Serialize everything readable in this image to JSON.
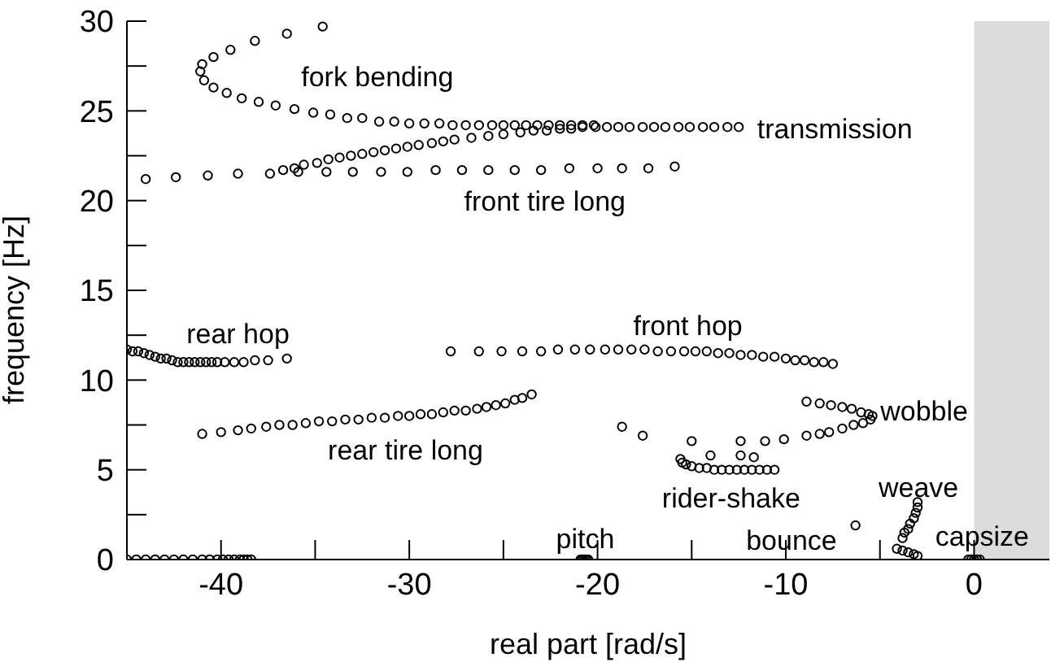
{
  "chart_data": {
    "type": "scatter",
    "xlabel": "real part [rad/s]",
    "ylabel": "frequency [Hz]",
    "xlim": [
      -45,
      4
    ],
    "ylim": [
      0,
      30
    ],
    "xticks": [
      -40,
      {
        "value": -35,
        "label": null
      },
      -30,
      {
        "value": -25,
        "label": null
      },
      -20,
      {
        "value": -15,
        "label": null
      },
      -10,
      {
        "value": -5,
        "label": null
      },
      0
    ],
    "yticks": [
      0,
      {
        "value": 2.5,
        "label": null
      },
      5,
      {
        "value": 7.5,
        "label": null
      },
      10,
      {
        "value": 12.5,
        "label": null
      },
      15,
      {
        "value": 17.5,
        "label": null
      },
      20,
      {
        "value": 22.5,
        "label": null
      },
      25,
      {
        "value": 27.5,
        "label": null
      },
      30
    ],
    "marker": "circle",
    "grid": false,
    "legend": false,
    "bands": [
      {
        "axis": "x",
        "from": 0,
        "to": 4,
        "color": "#dcdcdc"
      }
    ],
    "series": [
      {
        "color": "#000000",
        "x": [
          -34.6,
          -36.5,
          -38.2,
          -39.5,
          -40.4,
          -41.0,
          -41.1,
          -40.9,
          -40.4,
          -39.7,
          -38.9,
          -38.0,
          -37.1,
          -36.1,
          -35.1,
          -34.2,
          -33.3,
          -32.5,
          -31.6,
          -30.8,
          -30.0,
          -29.2,
          -28.4,
          -27.7,
          -27.0,
          -26.3,
          -25.6,
          -25.0,
          -24.4,
          -23.8,
          -23.2,
          -22.6,
          -22.0,
          -21.4,
          -20.8,
          -20.2
        ],
        "values": [
          29.7,
          29.3,
          28.9,
          28.4,
          28.0,
          27.6,
          27.2,
          26.7,
          26.3,
          26.0,
          25.7,
          25.5,
          25.3,
          25.1,
          24.9,
          24.8,
          24.6,
          24.6,
          24.4,
          24.4,
          24.3,
          24.3,
          24.3,
          24.2,
          24.2,
          24.2,
          24.2,
          24.2,
          24.2,
          24.2,
          24.2,
          24.2,
          24.2,
          24.2,
          24.2,
          24.2
        ]
      },
      {
        "color": "#000000",
        "x": [
          -44.0,
          -42.4,
          -40.7,
          -39.1,
          -37.4,
          -36.7,
          -36.1,
          -35.6,
          -34.9,
          -34.3,
          -33.7,
          -33.1,
          -32.5,
          -31.9,
          -31.3,
          -30.7,
          -30.1,
          -29.5,
          -28.8,
          -28.2,
          -27.6,
          -26.7,
          -25.8,
          -25.0,
          -24.1,
          -23.4,
          -22.7,
          -22.0,
          -21.4,
          -20.8,
          -20.1,
          -19.5,
          -18.9,
          -18.3,
          -17.6,
          -17.0,
          -16.4,
          -15.7,
          -15.1,
          -14.4,
          -13.8,
          -13.1,
          -12.5
        ],
        "values": [
          21.2,
          21.3,
          21.4,
          21.5,
          21.5,
          21.7,
          21.8,
          22.0,
          22.1,
          22.3,
          22.4,
          22.5,
          22.6,
          22.7,
          22.8,
          22.9,
          23.0,
          23.1,
          23.2,
          23.3,
          23.4,
          23.5,
          23.6,
          23.7,
          23.8,
          23.9,
          23.9,
          24.0,
          24.0,
          24.1,
          24.1,
          24.1,
          24.1,
          24.1,
          24.1,
          24.1,
          24.1,
          24.1,
          24.1,
          24.1,
          24.1,
          24.1,
          24.1
        ]
      },
      {
        "color": "#000000",
        "x": [
          -35.9,
          -34.4,
          -33.0,
          -31.5,
          -30.1,
          -28.6,
          -27.2,
          -25.8,
          -24.4,
          -23.0,
          -21.5,
          -20.0,
          -18.7,
          -17.3,
          -15.9
        ],
        "values": [
          21.6,
          21.6,
          21.6,
          21.6,
          21.6,
          21.7,
          21.7,
          21.7,
          21.7,
          21.7,
          21.8,
          21.8,
          21.8,
          21.8,
          21.9
        ]
      },
      {
        "color": "#000000",
        "x": [
          -45.0,
          -44.7,
          -44.4,
          -44.1,
          -43.8,
          -43.5,
          -43.2,
          -42.9,
          -42.6,
          -42.3,
          -42.0,
          -41.7,
          -41.4,
          -41.1,
          -40.8,
          -40.5,
          -40.2,
          -39.8,
          -39.3,
          -38.8,
          -38.2,
          -37.5,
          -36.5
        ],
        "values": [
          11.7,
          11.6,
          11.6,
          11.5,
          11.4,
          11.3,
          11.2,
          11.2,
          11.1,
          11.0,
          11.0,
          11.0,
          11.0,
          11.0,
          11.0,
          11.0,
          11.0,
          11.0,
          11.0,
          11.0,
          11.1,
          11.1,
          11.2
        ]
      },
      {
        "color": "#000000",
        "x": [
          -41.0,
          -40.0,
          -39.1,
          -38.4,
          -37.6,
          -36.9,
          -36.2,
          -35.5,
          -34.8,
          -34.1,
          -33.4,
          -32.7,
          -32.0,
          -31.3,
          -30.6,
          -30.0,
          -29.4,
          -28.8,
          -28.2,
          -27.6,
          -27.0,
          -26.4,
          -25.9,
          -25.4,
          -24.9,
          -24.4,
          -24.0,
          -23.5
        ],
        "values": [
          7.0,
          7.1,
          7.2,
          7.3,
          7.4,
          7.5,
          7.5,
          7.6,
          7.7,
          7.7,
          7.8,
          7.8,
          7.9,
          7.9,
          8.0,
          8.0,
          8.1,
          8.1,
          8.2,
          8.3,
          8.3,
          8.4,
          8.5,
          8.6,
          8.7,
          8.9,
          9.0,
          9.2
        ]
      },
      {
        "color": "#000000",
        "x": [
          -27.8,
          -26.3,
          -25.1,
          -24.0,
          -23.0,
          -22.1,
          -21.2,
          -20.4,
          -19.6,
          -18.9,
          -18.2,
          -17.5,
          -16.8,
          -16.1,
          -15.4,
          -14.8,
          -14.2,
          -13.6,
          -13.0,
          -12.4,
          -11.8,
          -11.2,
          -10.6,
          -10.0,
          -9.5,
          -9.0,
          -8.5,
          -8.0,
          -7.5
        ],
        "values": [
          11.6,
          11.6,
          11.6,
          11.6,
          11.6,
          11.7,
          11.7,
          11.7,
          11.7,
          11.7,
          11.7,
          11.7,
          11.6,
          11.6,
          11.6,
          11.6,
          11.6,
          11.5,
          11.5,
          11.4,
          11.4,
          11.3,
          11.3,
          11.2,
          11.1,
          11.1,
          11.0,
          11.0,
          10.9
        ]
      },
      {
        "color": "#000000",
        "x": [
          -8.9,
          -8.2,
          -7.6,
          -7.0,
          -6.5,
          -6.0,
          -5.6,
          -5.4,
          -5.5,
          -5.9,
          -6.4,
          -7.0,
          -7.7,
          -8.2,
          -8.9,
          -10.1,
          -11.1,
          -12.4,
          -15.0,
          -17.6,
          -18.7
        ],
        "values": [
          8.8,
          8.7,
          8.6,
          8.5,
          8.4,
          8.2,
          8.1,
          8.0,
          7.8,
          7.6,
          7.5,
          7.3,
          7.1,
          7.0,
          6.9,
          6.7,
          6.6,
          6.6,
          6.6,
          6.9,
          7.4
        ]
      },
      {
        "color": "#000000",
        "x": [
          -14.0,
          -12.4,
          -11.7,
          -15.6,
          -15.5,
          -15.3,
          -15.0,
          -14.6,
          -14.2,
          -13.8,
          -13.4,
          -13.0,
          -12.6,
          -12.2,
          -11.8,
          -11.4,
          -11.0,
          -10.6
        ],
        "values": [
          5.8,
          5.8,
          5.7,
          5.6,
          5.4,
          5.3,
          5.2,
          5.1,
          5.1,
          5.0,
          5.0,
          5.0,
          5.0,
          5.0,
          5.0,
          5.0,
          5.0,
          5.0
        ]
      },
      {
        "color": "#000000",
        "x": [
          -3.0,
          -3.0,
          -3.1,
          -3.2,
          -3.4,
          -3.5,
          -3.7,
          -3.8,
          -4.1,
          -3.8,
          -3.5,
          -3.2,
          -3.0
        ],
        "values": [
          3.2,
          2.9,
          2.6,
          2.3,
          2.0,
          1.7,
          1.5,
          1.2,
          0.6,
          0.5,
          0.4,
          0.3,
          0.2
        ]
      },
      {
        "color": "#000000",
        "x": [
          -6.3
        ],
        "values": [
          1.9
        ]
      },
      {
        "color": "#000000",
        "x": [
          -20.9,
          -20.8,
          -20.7,
          -20.6,
          -20.5
        ],
        "values": [
          0,
          0,
          0,
          0,
          0
        ]
      },
      {
        "color": "#000000",
        "x": [
          -0.3,
          -0.15,
          0,
          0.15,
          0.3
        ],
        "values": [
          0,
          0,
          0,
          0,
          0
        ]
      },
      {
        "color": "#000000",
        "x": [
          -45.0,
          -44.5,
          -44.0,
          -43.5,
          -43.0,
          -42.5,
          -42.0,
          -41.5,
          -41.0,
          -40.6,
          -40.2,
          -39.9,
          -39.6,
          -39.3,
          -39.0,
          -38.8,
          -38.6,
          -38.4
        ],
        "values": [
          0,
          0,
          0,
          0,
          0,
          0,
          0,
          0,
          0,
          0,
          0,
          0,
          0,
          0,
          0,
          0,
          0,
          0
        ]
      }
    ],
    "annotations": [
      "fork bending",
      "transmission",
      "front tire long",
      "rear hop",
      "rear tire long",
      "front hop",
      "wobble",
      "rider-shake",
      "weave",
      "pitch",
      "bounce",
      "capsize"
    ]
  }
}
